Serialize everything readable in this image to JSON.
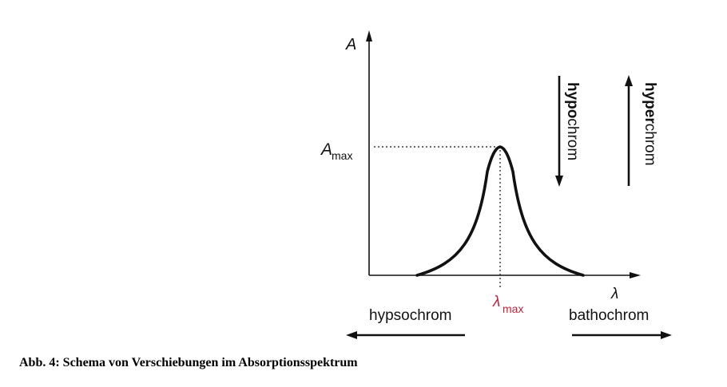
{
  "figure": {
    "axis_y_label": "A",
    "axis_x_label": "λ",
    "a_max_main": "A",
    "a_max_sub": "max",
    "lambda_max_main": "λ",
    "lambda_max_sub": "max",
    "shift_left_label": "hypsochrom",
    "shift_right_label": "bathochrom",
    "shift_down_prefix": "hypo",
    "shift_down_suffix": "chrom",
    "shift_up_prefix": "hyper",
    "shift_up_suffix": "chrom",
    "lambda_max_color": "#c0233b",
    "line_color": "#111111"
  },
  "caption": "Abb. 4: Schema von Verschiebungen im Absorptionsspektrum"
}
